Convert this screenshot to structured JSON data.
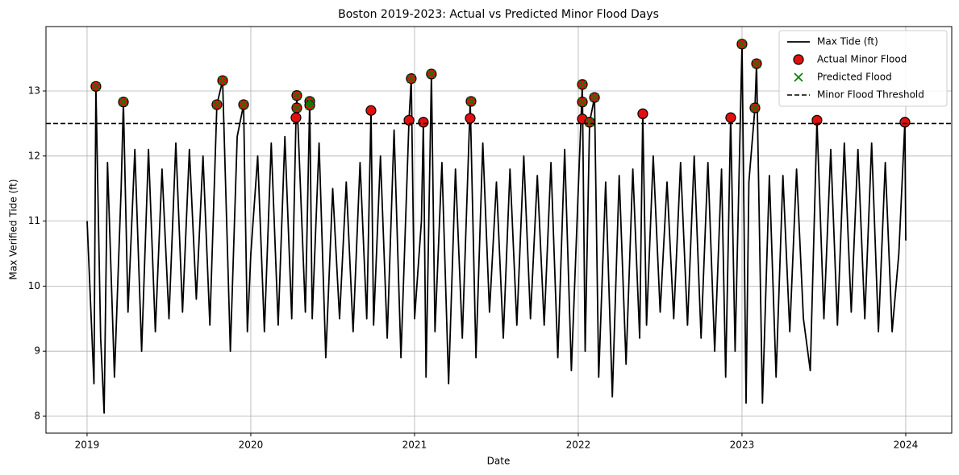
{
  "chart_data": {
    "type": "line",
    "title": "Boston 2019-2023: Actual vs Predicted Minor Flood Days",
    "x_label": "Date",
    "y_label": "Max Verified Tide (ft)",
    "xlim": [
      2018.749,
      2024.281
    ],
    "xticks": [
      2019,
      2020,
      2021,
      2022,
      2023,
      2024
    ],
    "ylim": [
      7.74,
      13.99
    ],
    "yticks": [
      8,
      9,
      10,
      11,
      12,
      13
    ],
    "grid": true,
    "legend": "upper right",
    "series": [
      {
        "name": "Max Tide (ft)",
        "color": "#000000",
        "marker": "line",
        "x": [
          2019.0,
          2019.042,
          2019.054,
          2019.083,
          2019.104,
          2019.125,
          2019.167,
          2019.208,
          2019.222,
          2019.25,
          2019.292,
          2019.333,
          2019.375,
          2019.417,
          2019.458,
          2019.5,
          2019.542,
          2019.583,
          2019.625,
          2019.667,
          2019.708,
          2019.75,
          2019.793,
          2019.828,
          2019.875,
          2019.917,
          2019.956,
          2019.979,
          2020.0,
          2020.042,
          2020.083,
          2020.125,
          2020.167,
          2020.208,
          2020.25,
          2020.276,
          2020.281,
          2020.333,
          2020.36,
          2020.375,
          2020.417,
          2020.458,
          2020.5,
          2020.542,
          2020.583,
          2020.625,
          2020.667,
          2020.708,
          2020.734,
          2020.75,
          2020.792,
          2020.833,
          2020.875,
          2020.917,
          2020.966,
          2020.98,
          2021.0,
          2021.042,
          2021.054,
          2021.07,
          2021.103,
          2021.125,
          2021.167,
          2021.208,
          2021.25,
          2021.292,
          2021.34,
          2021.375,
          2021.417,
          2021.458,
          2021.5,
          2021.542,
          2021.583,
          2021.625,
          2021.667,
          2021.708,
          2021.75,
          2021.792,
          2021.833,
          2021.875,
          2021.917,
          2021.958,
          2022.0,
          2022.025,
          2022.042,
          2022.069,
          2022.099,
          2022.125,
          2022.167,
          2022.208,
          2022.25,
          2022.292,
          2022.333,
          2022.375,
          2022.394,
          2022.417,
          2022.458,
          2022.5,
          2022.542,
          2022.583,
          2022.625,
          2022.667,
          2022.708,
          2022.75,
          2022.792,
          2022.833,
          2022.875,
          2022.9,
          2022.931,
          2022.958,
          2023.0,
          2023.025,
          2023.042,
          2023.079,
          2023.089,
          2023.125,
          2023.167,
          2023.208,
          2023.25,
          2023.292,
          2023.333,
          2023.375,
          2023.417,
          2023.458,
          2023.5,
          2023.542,
          2023.583,
          2023.625,
          2023.667,
          2023.708,
          2023.75,
          2023.792,
          2023.833,
          2023.875,
          2023.917,
          2023.958,
          2023.995,
          2024.0
        ],
        "values": [
          11.0,
          8.5,
          13.07,
          9.2,
          8.05,
          11.9,
          8.6,
          11.5,
          12.83,
          9.6,
          12.1,
          9.0,
          12.1,
          9.3,
          11.8,
          9.5,
          12.2,
          9.6,
          12.1,
          9.8,
          12.0,
          9.4,
          12.79,
          13.16,
          9.0,
          12.3,
          12.79,
          9.3,
          10.5,
          12.0,
          9.3,
          12.2,
          9.4,
          12.3,
          9.5,
          12.59,
          12.93,
          9.6,
          12.84,
          9.5,
          12.2,
          8.9,
          11.5,
          9.5,
          11.6,
          9.3,
          11.9,
          9.5,
          12.7,
          9.4,
          12.0,
          9.2,
          12.4,
          8.9,
          12.55,
          13.19,
          9.5,
          11.0,
          12.52,
          8.6,
          13.26,
          9.3,
          11.9,
          8.5,
          11.8,
          9.2,
          12.84,
          8.9,
          12.2,
          9.6,
          11.6,
          9.2,
          11.8,
          9.4,
          12.0,
          9.5,
          11.7,
          9.4,
          11.9,
          8.9,
          12.1,
          8.7,
          11.5,
          13.1,
          9.0,
          12.52,
          12.9,
          8.6,
          11.6,
          8.3,
          11.7,
          8.8,
          11.8,
          9.2,
          12.65,
          9.4,
          12.0,
          9.6,
          11.6,
          9.5,
          11.9,
          9.4,
          12.0,
          9.2,
          11.9,
          9.0,
          11.8,
          8.6,
          12.59,
          9.0,
          13.72,
          8.2,
          11.6,
          12.74,
          13.42,
          8.2,
          11.7,
          8.6,
          11.7,
          9.3,
          11.8,
          9.5,
          8.7,
          12.55,
          9.5,
          12.1,
          9.4,
          12.2,
          9.6,
          12.1,
          9.5,
          12.2,
          9.3,
          11.9,
          9.3,
          10.5,
          12.52,
          10.7
        ]
      },
      {
        "name": "Actual Minor Flood",
        "color": "#e01010",
        "marker": "circle",
        "x": [
          2019.054,
          2019.222,
          2019.793,
          2019.828,
          2019.956,
          2020.276,
          2020.281,
          2020.281,
          2020.36,
          2020.36,
          2020.734,
          2020.966,
          2020.98,
          2021.054,
          2021.103,
          2021.34,
          2021.345,
          2022.025,
          2022.025,
          2022.025,
          2022.069,
          2022.099,
          2022.394,
          2022.931,
          2023.0,
          2023.079,
          2023.089,
          2023.458,
          2023.995
        ],
        "values": [
          13.07,
          12.83,
          12.79,
          13.16,
          12.79,
          12.59,
          12.74,
          12.93,
          12.84,
          12.78,
          12.7,
          12.55,
          13.19,
          12.52,
          13.26,
          12.58,
          12.84,
          13.1,
          12.83,
          12.57,
          12.52,
          12.9,
          12.65,
          12.59,
          13.72,
          12.74,
          13.42,
          12.55,
          12.52
        ]
      },
      {
        "name": "Predicted Flood",
        "color": "#008000",
        "marker": "x",
        "x": [
          2019.054,
          2019.222,
          2019.793,
          2019.828,
          2019.956,
          2020.281,
          2020.281,
          2020.36,
          2020.36,
          2020.98,
          2021.103,
          2021.345,
          2022.025,
          2022.025,
          2022.069,
          2022.099,
          2023.0,
          2023.079,
          2023.089
        ],
        "values": [
          13.07,
          12.83,
          12.79,
          13.16,
          12.79,
          12.74,
          12.93,
          12.84,
          12.78,
          13.19,
          13.26,
          12.84,
          13.1,
          12.83,
          12.52,
          12.9,
          13.72,
          12.74,
          13.42
        ]
      }
    ],
    "threshold": {
      "name": "Minor Flood Threshold",
      "value": 12.5,
      "color": "#000000"
    }
  }
}
